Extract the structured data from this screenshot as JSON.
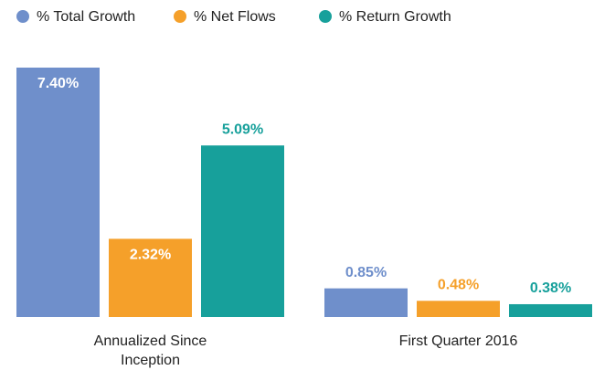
{
  "chart_data": {
    "type": "bar",
    "categories": [
      "Annualized Since Inception",
      "First Quarter 2016"
    ],
    "series": [
      {
        "name": "% Total Growth",
        "color": "#6f8fcb",
        "values": [
          7.4,
          0.85
        ],
        "value_labels": [
          "7.40%",
          "0.85%"
        ]
      },
      {
        "name": "% Net Flows",
        "color": "#f5a02a",
        "values": [
          2.32,
          0.48
        ],
        "value_labels": [
          "2.32%",
          "0.48%"
        ]
      },
      {
        "name": "% Return Growth",
        "color": "#17a09b",
        "values": [
          5.09,
          0.38
        ],
        "value_labels": [
          "5.09%",
          "0.38%"
        ]
      }
    ]
  }
}
